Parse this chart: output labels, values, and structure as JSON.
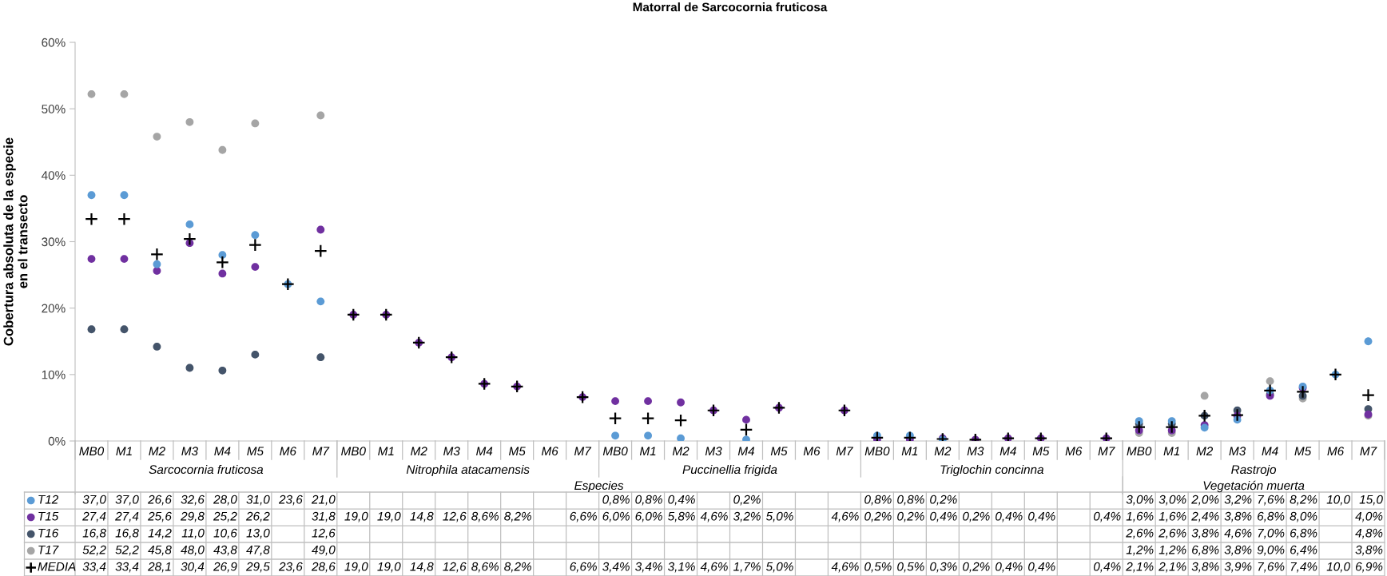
{
  "chart_data": {
    "type": "scatter",
    "title": "Matorral de Sarcocornia fruticosa",
    "ylabel": "Cobertura absoluta de la especie en el transecto",
    "categories": [
      "MB0",
      "M1",
      "M2",
      "M3",
      "M4",
      "M5",
      "M6",
      "M7",
      "MB0",
      "M1",
      "M2",
      "M3",
      "M4",
      "M5",
      "M6",
      "M7",
      "MB0",
      "M1",
      "M2",
      "M3",
      "M4",
      "M5",
      "M6",
      "M7",
      "MB0",
      "M1",
      "M2",
      "M3",
      "M4",
      "M5",
      "M6",
      "M7",
      "MB0",
      "M1",
      "M2",
      "M3",
      "M4",
      "M5",
      "M6",
      "M7"
    ],
    "annotations": [
      "Sarcocornia fruticosa",
      "Nitrophila atacamensis",
      "Puccinellia frigida",
      "Triglochin concinna",
      "Rastrojo",
      "Especies",
      "Vegetación muerta"
    ],
    "ylim": [
      0,
      60
    ],
    "yticks": [
      {
        "value": 0,
        "label": "0%"
      },
      {
        "value": 10,
        "label": "10%"
      },
      {
        "value": 20,
        "label": "20%"
      },
      {
        "value": 30,
        "label": "30%"
      },
      {
        "value": 40,
        "label": "40%"
      },
      {
        "value": 50,
        "label": "50%"
      },
      {
        "value": 60,
        "label": "60%"
      }
    ],
    "grid": false,
    "legend": "bottom",
    "series": [
      {
        "name": "T12",
        "color": "#5b9bd5",
        "marker": "circle",
        "values": [
          37.0,
          37.0,
          26.6,
          32.6,
          28.0,
          31.0,
          23.6,
          21.0,
          null,
          null,
          null,
          null,
          null,
          null,
          null,
          null,
          0.8,
          0.8,
          0.4,
          null,
          0.2,
          null,
          null,
          null,
          0.8,
          0.8,
          0.2,
          null,
          null,
          null,
          null,
          null,
          3.0,
          3.0,
          2.0,
          3.2,
          7.6,
          8.2,
          10.0,
          15.0
        ],
        "value_labels": [
          "37,0",
          "37,0",
          "26,6",
          "32,6",
          "28,0",
          "31,0",
          "23,6",
          "21,0",
          null,
          null,
          null,
          null,
          null,
          null,
          null,
          null,
          "0,8%",
          "0,8%",
          "0,4%",
          null,
          "0,2%",
          null,
          null,
          null,
          "0,8%",
          "0,8%",
          "0,2%",
          null,
          null,
          null,
          null,
          null,
          "3,0%",
          "3,0%",
          "2,0%",
          "3,2%",
          "7,6%",
          "8,2%",
          "10,0",
          "15,0"
        ]
      },
      {
        "name": "T15",
        "color": "#7030a0",
        "marker": "circle",
        "values": [
          27.4,
          27.4,
          25.6,
          29.8,
          25.2,
          26.2,
          null,
          31.8,
          19.0,
          19.0,
          14.8,
          12.6,
          8.6,
          8.2,
          null,
          6.6,
          6.0,
          6.0,
          5.8,
          4.6,
          3.2,
          5.0,
          null,
          4.6,
          0.2,
          0.2,
          0.4,
          0.2,
          0.4,
          0.4,
          null,
          0.4,
          1.6,
          1.6,
          2.4,
          3.8,
          6.8,
          8.0,
          null,
          4.0
        ],
        "value_labels": [
          "27,4",
          "27,4",
          "25,6",
          "29,8",
          "25,2",
          "26,2",
          null,
          "31,8",
          "19,0",
          "19,0",
          "14,8",
          "12,6",
          "8,6%",
          "8,2%",
          null,
          "6,6%",
          "6,0%",
          "6,0%",
          "5,8%",
          "4,6%",
          "3,2%",
          "5,0%",
          null,
          "4,6%",
          "0,2%",
          "0,2%",
          "0,4%",
          "0,2%",
          "0,4%",
          "0,4%",
          null,
          "0,4%",
          "1,6%",
          "1,6%",
          "2,4%",
          "3,8%",
          "6,8%",
          "8,0%",
          null,
          "4,0%"
        ]
      },
      {
        "name": "T16",
        "color": "#44546a",
        "marker": "circle",
        "values": [
          16.8,
          16.8,
          14.2,
          11.0,
          10.6,
          13.0,
          null,
          12.6,
          null,
          null,
          null,
          null,
          null,
          null,
          null,
          null,
          null,
          null,
          null,
          null,
          null,
          null,
          null,
          null,
          null,
          null,
          null,
          null,
          null,
          null,
          null,
          null,
          2.6,
          2.6,
          3.8,
          4.6,
          7.0,
          6.8,
          null,
          4.8
        ],
        "value_labels": [
          "16,8",
          "16,8",
          "14,2",
          "11,0",
          "10,6",
          "13,0",
          null,
          "12,6",
          null,
          null,
          null,
          null,
          null,
          null,
          null,
          null,
          null,
          null,
          null,
          null,
          null,
          null,
          null,
          null,
          null,
          null,
          null,
          null,
          null,
          null,
          null,
          null,
          "2,6%",
          "2,6%",
          "3,8%",
          "4,6%",
          "7,0%",
          "6,8%",
          null,
          "4,8%"
        ]
      },
      {
        "name": "T17",
        "color": "#a5a5a5",
        "marker": "circle",
        "values": [
          52.2,
          52.2,
          45.8,
          48.0,
          43.8,
          47.8,
          null,
          49.0,
          null,
          null,
          null,
          null,
          null,
          null,
          null,
          null,
          null,
          null,
          null,
          null,
          null,
          null,
          null,
          null,
          null,
          null,
          null,
          null,
          null,
          null,
          null,
          null,
          1.2,
          1.2,
          6.8,
          3.8,
          9.0,
          6.4,
          null,
          3.8
        ],
        "value_labels": [
          "52,2",
          "52,2",
          "45,8",
          "48,0",
          "43,8",
          "47,8",
          null,
          "49,0",
          null,
          null,
          null,
          null,
          null,
          null,
          null,
          null,
          null,
          null,
          null,
          null,
          null,
          null,
          null,
          null,
          null,
          null,
          null,
          null,
          null,
          null,
          null,
          null,
          "1,2%",
          "1,2%",
          "6,8%",
          "3,8%",
          "9,0%",
          "6,4%",
          null,
          "3,8%"
        ]
      },
      {
        "name": "MEDIA",
        "color": "#000000",
        "marker": "cross",
        "values": [
          33.4,
          33.4,
          28.1,
          30.4,
          26.9,
          29.5,
          23.6,
          28.6,
          19.0,
          19.0,
          14.8,
          12.6,
          8.6,
          8.2,
          null,
          6.6,
          3.4,
          3.4,
          3.1,
          4.6,
          1.7,
          5.0,
          null,
          4.6,
          0.5,
          0.5,
          0.3,
          0.2,
          0.4,
          0.4,
          null,
          0.4,
          2.1,
          2.1,
          3.8,
          3.9,
          7.6,
          7.4,
          10.0,
          6.9
        ],
        "value_labels": [
          "33,4",
          "33,4",
          "28,1",
          "30,4",
          "26,9",
          "29,5",
          "23,6",
          "28,6",
          "19,0",
          "19,0",
          "14,8",
          "12,6",
          "8,6%",
          "8,2%",
          null,
          "6,6%",
          "3,4%",
          "3,4%",
          "3,1%",
          "4,6%",
          "1,7%",
          "5,0%",
          null,
          "4,6%",
          "0,5%",
          "0,5%",
          "0,3%",
          "0,2%",
          "0,4%",
          "0,4%",
          null,
          "0,4%",
          "2,1%",
          "2,1%",
          "3,8%",
          "3,9%",
          "7,6%",
          "7,4%",
          "10,0",
          "6,9%"
        ]
      }
    ]
  }
}
